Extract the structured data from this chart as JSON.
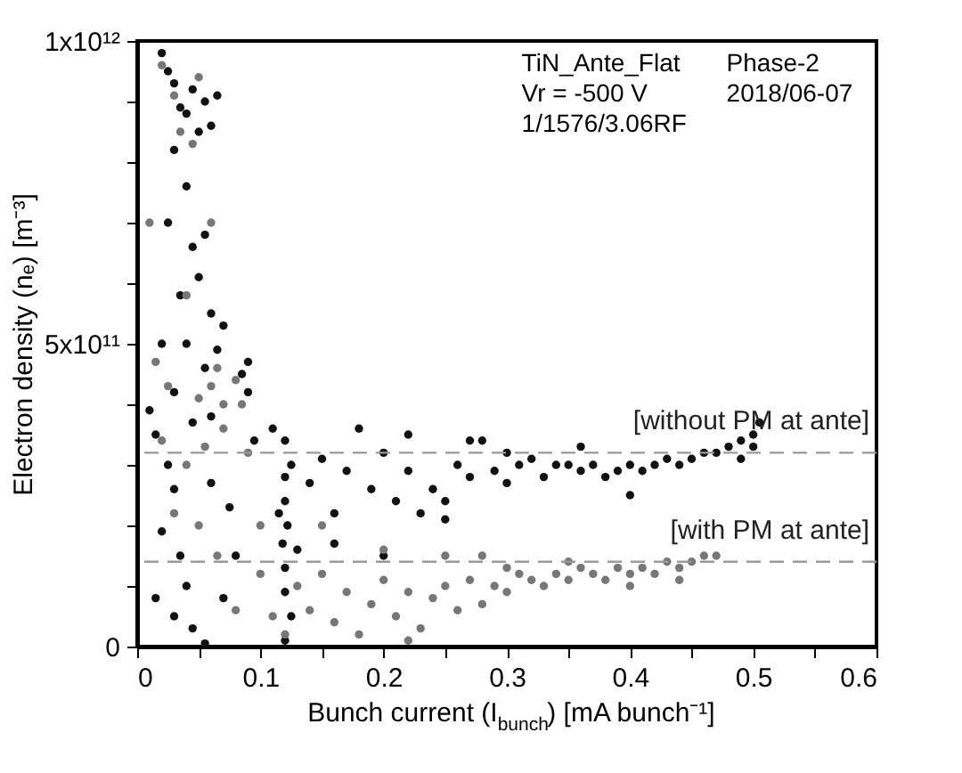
{
  "chart_data": {
    "type": "scatter",
    "xlabel": "Bunch current (I$_{bunch}$) [mA bunch⁻¹]",
    "ylabel": "Electron density (nₑ) [m⁻³]",
    "xlim": [
      0,
      0.6
    ],
    "ylim": [
      0,
      1000000000000.0
    ],
    "xticks": [
      0,
      {
        "value": 0.05,
        "label": null
      },
      0.1,
      {
        "value": 0.15,
        "label": null
      },
      0.2,
      {
        "value": 0.25,
        "label": null
      },
      0.3,
      {
        "value": 0.35,
        "label": null
      },
      0.4,
      {
        "value": 0.45,
        "label": null
      },
      0.5,
      {
        "value": 0.55,
        "label": null
      },
      0.6
    ],
    "yticks": [
      0,
      {
        "value": 100000000000.0,
        "label": null
      },
      {
        "value": 200000000000.0,
        "label": null
      },
      {
        "value": 300000000000.0,
        "label": null
      },
      {
        "value": 400000000000.0,
        "label": null
      },
      {
        "value": 500000000000.0,
        "label": "5x10¹¹"
      },
      {
        "value": 600000000000.0,
        "label": null
      },
      {
        "value": 700000000000.0,
        "label": null
      },
      {
        "value": 800000000000.0,
        "label": null
      },
      {
        "value": 900000000000.0,
        "label": null
      },
      {
        "value": 1000000000000.0,
        "label": "1x10¹²"
      }
    ],
    "grid": false,
    "legend": false,
    "marker": "circle",
    "annotations": [
      "TiN_Ante_Flat",
      "Vr = -500 V",
      "1/1576/3.06RF",
      "Phase-2",
      "2018/06-07"
    ],
    "ref_lines": [
      {
        "axis": "y",
        "value": 320000000000.0,
        "label": "[without PM at ante]",
        "color": "#999999",
        "line_style": "dashed"
      },
      {
        "axis": "y",
        "value": 140000000000.0,
        "label": "[with PM at ante]",
        "color": "#999999",
        "line_style": "dashed"
      }
    ],
    "series": [
      {
        "color": "#111111",
        "x": [
          0.02,
          0.025,
          0.03,
          0.035,
          0.04,
          0.045,
          0.05,
          0.055,
          0.06,
          0.065,
          0.03,
          0.04,
          0.025,
          0.045,
          0.055,
          0.05,
          0.035,
          0.06,
          0.02,
          0.04,
          0.055,
          0.065,
          0.07,
          0.03,
          0.045,
          0.06,
          0.085,
          0.09,
          0.09,
          0.095,
          0.01,
          0.015,
          0.025,
          0.03,
          0.02,
          0.035,
          0.04,
          0.015,
          0.03,
          0.045,
          0.055,
          0.07,
          0.08,
          0.075,
          0.06,
          0.12,
          0.12,
          0.12,
          0.122,
          0.118,
          0.12,
          0.12,
          0.125,
          0.12,
          0.125,
          0.115,
          0.13,
          0.11,
          0.14,
          0.15,
          0.16,
          0.17,
          0.18,
          0.19,
          0.2,
          0.21,
          0.22,
          0.23,
          0.24,
          0.25,
          0.26,
          0.27,
          0.28,
          0.29,
          0.3,
          0.31,
          0.32,
          0.33,
          0.34,
          0.35,
          0.36,
          0.37,
          0.38,
          0.39,
          0.4,
          0.41,
          0.42,
          0.43,
          0.44,
          0.45,
          0.46,
          0.47,
          0.48,
          0.49,
          0.5,
          0.505,
          0.5,
          0.49,
          0.4,
          0.36,
          0.27,
          0.22,
          0.16,
          0.2,
          0.25,
          0.3
        ],
        "values": [
          980000000000.0,
          950000000000.0,
          930000000000.0,
          890000000000.0,
          880000000000.0,
          920000000000.0,
          850000000000.0,
          900000000000.0,
          860000000000.0,
          910000000000.0,
          820000000000.0,
          760000000000.0,
          700000000000.0,
          660000000000.0,
          680000000000.0,
          610000000000.0,
          580000000000.0,
          550000000000.0,
          500000000000.0,
          500000000000.0,
          460000000000.0,
          490000000000.0,
          530000000000.0,
          420000000000.0,
          370000000000.0,
          380000000000.0,
          450000000000.0,
          470000000000.0,
          420000000000.0,
          340000000000.0,
          390000000000.0,
          350000000000.0,
          300000000000.0,
          260000000000.0,
          190000000000.0,
          150000000000.0,
          100000000000.0,
          80000000000.0,
          50000000000.0,
          30000000000.0,
          5000000000.0,
          80000000000.0,
          150000000000.0,
          230000000000.0,
          270000000000.0,
          340000000000.0,
          280000000000.0,
          240000000000.0,
          200000000000.0,
          170000000000.0,
          130000000000.0,
          90000000000.0,
          50000000000.0,
          10000000000.0,
          300000000000.0,
          220000000000.0,
          160000000000.0,
          360000000000.0,
          270000000000.0,
          310000000000.0,
          220000000000.0,
          290000000000.0,
          360000000000.0,
          260000000000.0,
          320000000000.0,
          240000000000.0,
          290000000000.0,
          220000000000.0,
          260000000000.0,
          240000000000.0,
          300000000000.0,
          280000000000.0,
          340000000000.0,
          290000000000.0,
          270000000000.0,
          300000000000.0,
          310000000000.0,
          280000000000.0,
          300000000000.0,
          300000000000.0,
          290000000000.0,
          300000000000.0,
          280000000000.0,
          290000000000.0,
          300000000000.0,
          290000000000.0,
          300000000000.0,
          310000000000.0,
          300000000000.0,
          310000000000.0,
          320000000000.0,
          320000000000.0,
          330000000000.0,
          340000000000.0,
          350000000000.0,
          370000000000.0,
          330000000000.0,
          310000000000.0,
          250000000000.0,
          330000000000.0,
          340000000000.0,
          350000000000.0,
          170000000000.0,
          150000000000.0,
          210000000000.0,
          320000000000.0
        ]
      },
      {
        "color": "#777777",
        "x": [
          0.02,
          0.03,
          0.035,
          0.045,
          0.05,
          0.06,
          0.04,
          0.015,
          0.025,
          0.05,
          0.06,
          0.065,
          0.07,
          0.08,
          0.085,
          0.01,
          0.02,
          0.04,
          0.055,
          0.07,
          0.09,
          0.03,
          0.05,
          0.065,
          0.08,
          0.1,
          0.1,
          0.11,
          0.12,
          0.13,
          0.14,
          0.15,
          0.16,
          0.17,
          0.18,
          0.19,
          0.2,
          0.21,
          0.22,
          0.23,
          0.24,
          0.25,
          0.26,
          0.27,
          0.28,
          0.29,
          0.3,
          0.31,
          0.32,
          0.33,
          0.34,
          0.35,
          0.36,
          0.37,
          0.38,
          0.39,
          0.4,
          0.41,
          0.42,
          0.43,
          0.44,
          0.45,
          0.46,
          0.47,
          0.44,
          0.4,
          0.35,
          0.3,
          0.25,
          0.2,
          0.15,
          0.22,
          0.28
        ],
        "values": [
          960000000000.0,
          910000000000.0,
          850000000000.0,
          830000000000.0,
          940000000000.0,
          700000000000.0,
          580000000000.0,
          470000000000.0,
          430000000000.0,
          410000000000.0,
          430000000000.0,
          460000000000.0,
          400000000000.0,
          440000000000.0,
          400000000000.0,
          700000000000.0,
          340000000000.0,
          300000000000.0,
          330000000000.0,
          360000000000.0,
          320000000000.0,
          220000000000.0,
          200000000000.0,
          150000000000.0,
          60000000000.0,
          200000000000.0,
          120000000000.0,
          50000000000.0,
          20000000000.0,
          100000000000.0,
          60000000000.0,
          120000000000.0,
          40000000000.0,
          90000000000.0,
          20000000000.0,
          70000000000.0,
          110000000000.0,
          50000000000.0,
          90000000000.0,
          30000000000.0,
          80000000000.0,
          100000000000.0,
          60000000000.0,
          110000000000.0,
          70000000000.0,
          100000000000.0,
          90000000000.0,
          120000000000.0,
          110000000000.0,
          100000000000.0,
          120000000000.0,
          110000000000.0,
          130000000000.0,
          120000000000.0,
          110000000000.0,
          130000000000.0,
          120000000000.0,
          130000000000.0,
          120000000000.0,
          140000000000.0,
          130000000000.0,
          140000000000.0,
          150000000000.0,
          150000000000.0,
          110000000000.0,
          100000000000.0,
          140000000000.0,
          130000000000.0,
          150000000000.0,
          160000000000.0,
          200000000000.0,
          10000000000.0,
          150000000000.0
        ]
      }
    ]
  }
}
